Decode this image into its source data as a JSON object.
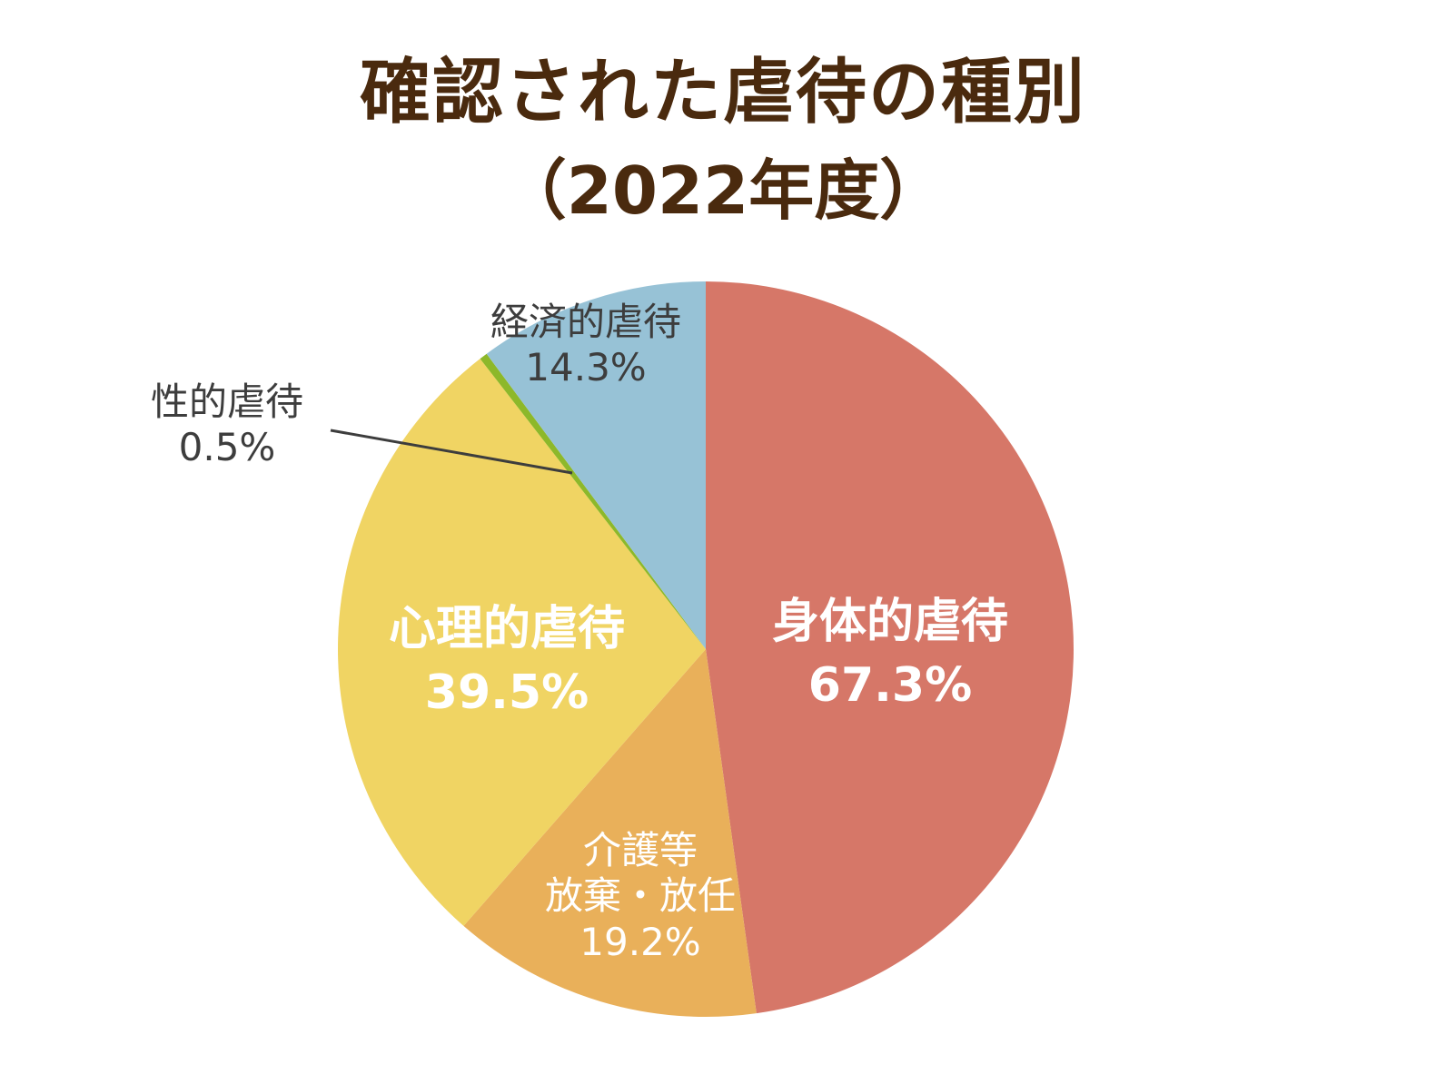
{
  "title": {
    "line1": "確認された虐待の種別",
    "line2": "（2022年度）"
  },
  "chart_data": {
    "type": "pie",
    "title": "確認された虐待の種別（2022年度）",
    "note": "Multiple-answer percentages; slice sizes proportional to values",
    "start_angle": "12 o'clock, clockwise",
    "categories": [
      "身体的虐待",
      "介護等放棄・放任",
      "心理的虐待",
      "性的虐待",
      "経済的虐待"
    ],
    "values": [
      67.3,
      19.2,
      39.5,
      0.5,
      14.3
    ],
    "unit": "%",
    "colors": [
      "#d67768",
      "#e9b05a",
      "#f0d463",
      "#8db82a",
      "#97c2d6"
    ],
    "labels": [
      {
        "name": "身体的虐待",
        "value_text": "67.3%"
      },
      {
        "name_lines": [
          "介護等",
          "放棄・放任"
        ],
        "value_text": "19.2%"
      },
      {
        "name": "心理的虐待",
        "value_text": "39.5%"
      },
      {
        "name": "性的虐待",
        "value_text": "0.5%"
      },
      {
        "name": "経済的虐待",
        "value_text": "14.3%"
      }
    ],
    "legend": "none (inline labels)",
    "grid": false
  }
}
